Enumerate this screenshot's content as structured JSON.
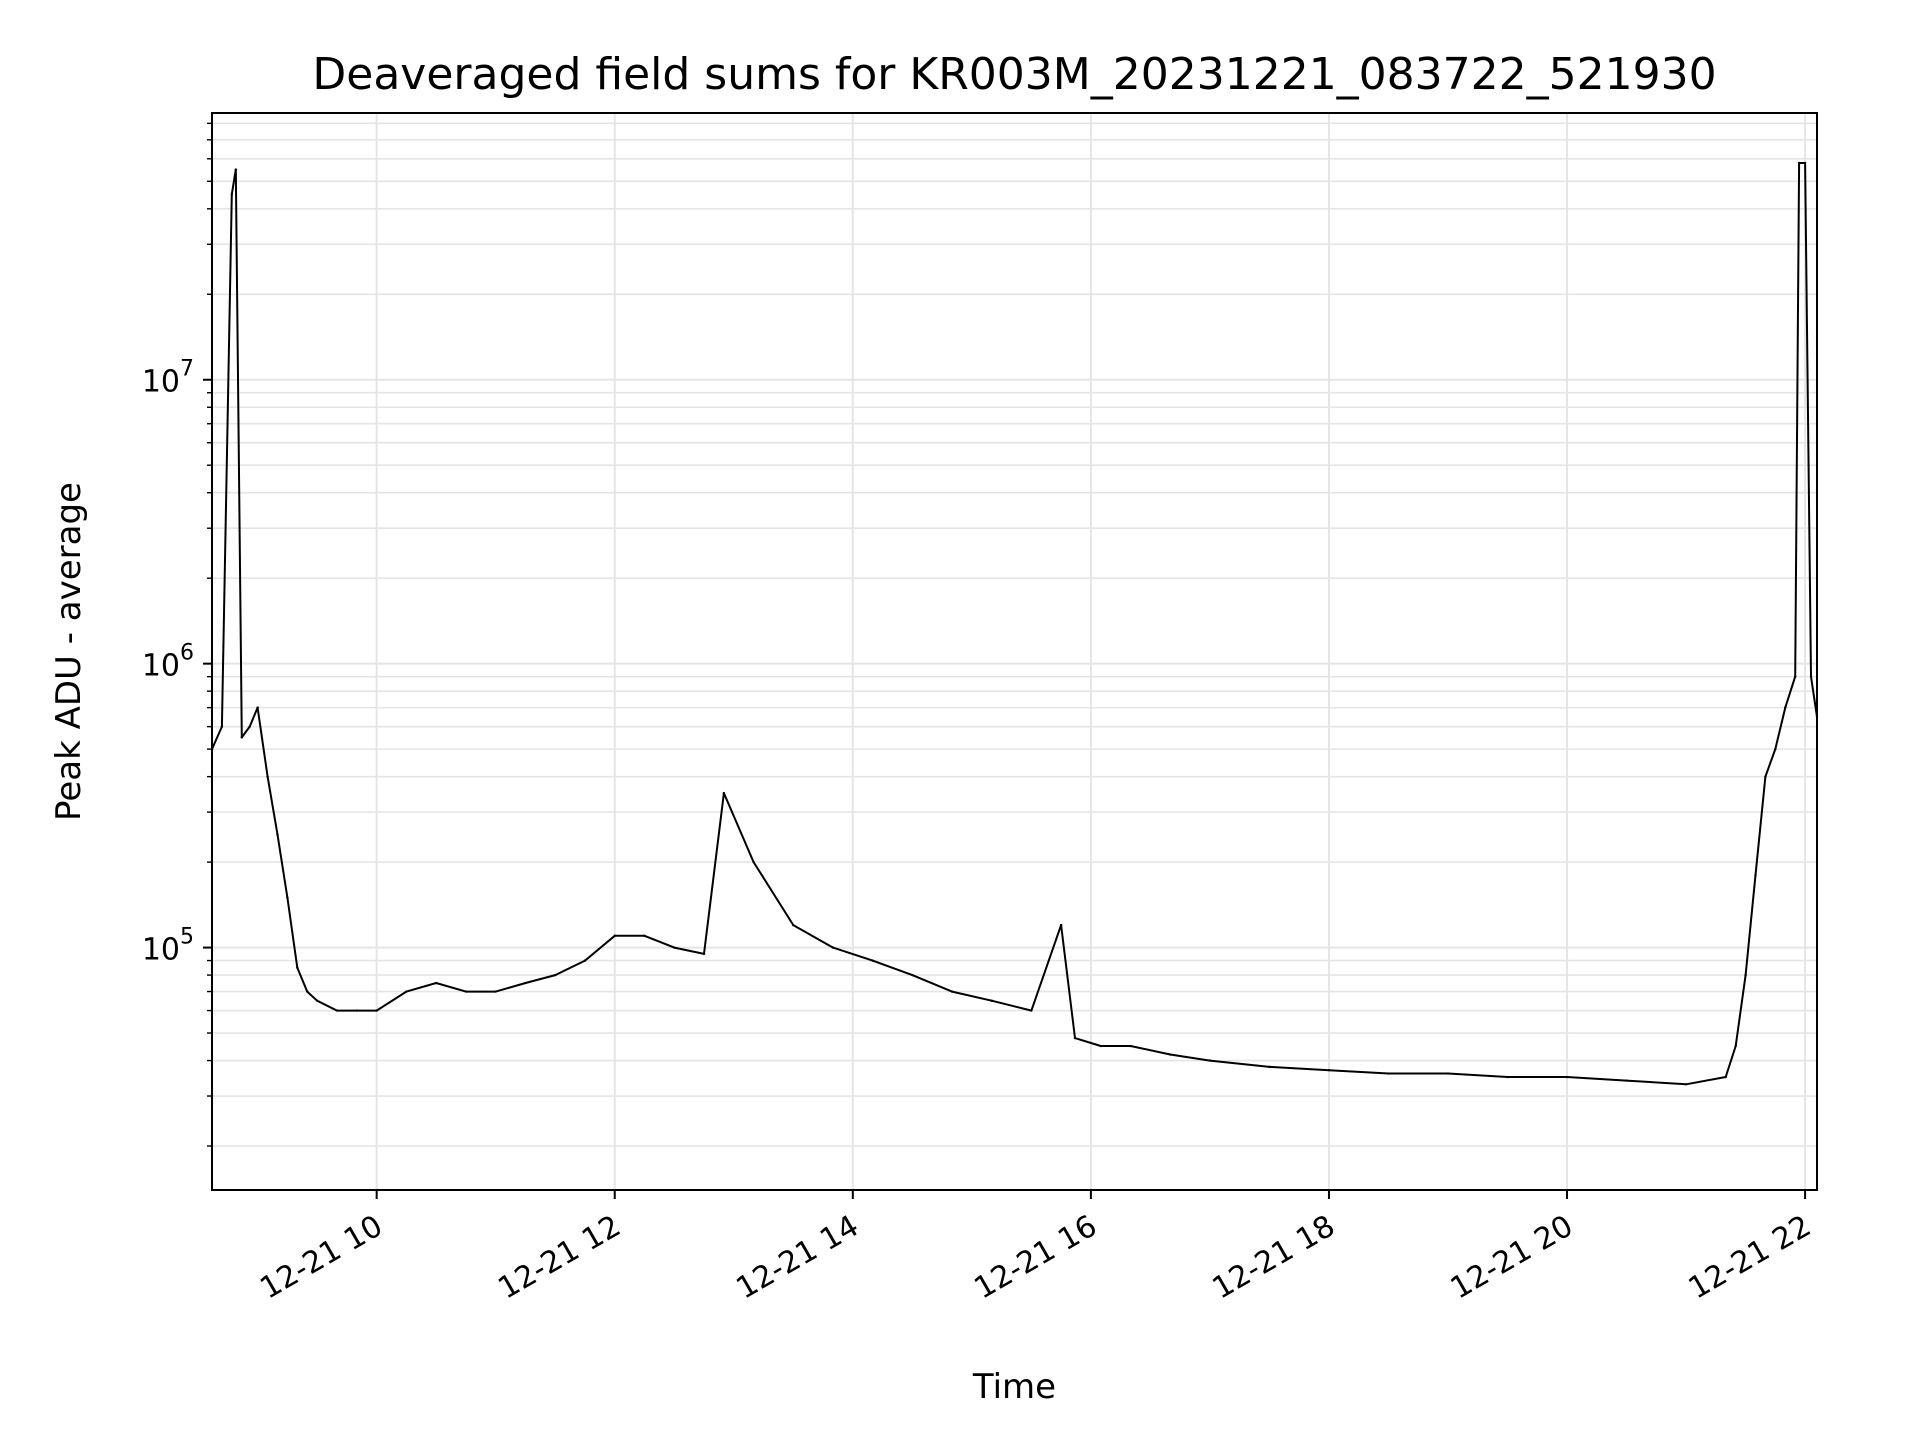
{
  "chart_data": {
    "type": "line",
    "title": "Deaveraged field sums for KR003M_20231221_083722_521930",
    "xlabel": "Time",
    "ylabel": "Peak ADU - average",
    "x_scale": "time",
    "y_scale": "log",
    "xlim": [
      "2023-12-21 08:37",
      "2023-12-21 22:06"
    ],
    "ylim": [
      14000,
      87000000
    ],
    "grid": true,
    "x_ticks": [
      "12-21 10",
      "12-21 12",
      "12-21 14",
      "12-21 16",
      "12-21 18",
      "12-21 20",
      "12-21 22"
    ],
    "y_ticks": [
      {
        "base": "10",
        "exp": "5",
        "value": 100000
      },
      {
        "base": "10",
        "exp": "6",
        "value": 1000000
      },
      {
        "base": "10",
        "exp": "7",
        "value": 10000000
      }
    ],
    "line_color": "#000000",
    "grid_color": "#e5e5e5",
    "series": [
      {
        "x": [
          "2023-12-21 08:37",
          "2023-12-21 08:42",
          "2023-12-21 08:47",
          "2023-12-21 08:49",
          "2023-12-21 08:52",
          "2023-12-21 08:56",
          "2023-12-21 09:00",
          "2023-12-21 09:05",
          "2023-12-21 09:10",
          "2023-12-21 09:15",
          "2023-12-21 09:20",
          "2023-12-21 09:25",
          "2023-12-21 09:30",
          "2023-12-21 09:40",
          "2023-12-21 09:50",
          "2023-12-21 10:00",
          "2023-12-21 10:15",
          "2023-12-21 10:30",
          "2023-12-21 10:45",
          "2023-12-21 11:00",
          "2023-12-21 11:15",
          "2023-12-21 11:30",
          "2023-12-21 11:45",
          "2023-12-21 12:00",
          "2023-12-21 12:15",
          "2023-12-21 12:30",
          "2023-12-21 12:45",
          "2023-12-21 12:55",
          "2023-12-21 13:10",
          "2023-12-21 13:30",
          "2023-12-21 13:50",
          "2023-12-21 14:10",
          "2023-12-21 14:30",
          "2023-12-21 14:50",
          "2023-12-21 15:10",
          "2023-12-21 15:30",
          "2023-12-21 15:45",
          "2023-12-21 15:52",
          "2023-12-21 16:05",
          "2023-12-21 16:20",
          "2023-12-21 16:40",
          "2023-12-21 17:00",
          "2023-12-21 17:30",
          "2023-12-21 18:00",
          "2023-12-21 18:30",
          "2023-12-21 19:00",
          "2023-12-21 19:30",
          "2023-12-21 20:00",
          "2023-12-21 20:30",
          "2023-12-21 21:00",
          "2023-12-21 21:20",
          "2023-12-21 21:25",
          "2023-12-21 21:30",
          "2023-12-21 21:35",
          "2023-12-21 21:40",
          "2023-12-21 21:45",
          "2023-12-21 21:50",
          "2023-12-21 21:55",
          "2023-12-21 21:57",
          "2023-12-21 22:00",
          "2023-12-21 22:03",
          "2023-12-21 22:06"
        ],
        "y": [
          500000,
          600000,
          45000000,
          55000000,
          550000,
          600000,
          700000,
          400000,
          250000,
          150000,
          85000,
          70000,
          65000,
          60000,
          60000,
          60000,
          70000,
          75000,
          70000,
          70000,
          75000,
          80000,
          90000,
          110000,
          110000,
          100000,
          95000,
          350000,
          200000,
          120000,
          100000,
          90000,
          80000,
          70000,
          65000,
          60000,
          120000,
          48000,
          45000,
          45000,
          42000,
          40000,
          38000,
          37000,
          36000,
          36000,
          35000,
          35000,
          34000,
          33000,
          35000,
          45000,
          80000,
          180000,
          400000,
          500000,
          700000,
          900000,
          58000000,
          58000000,
          900000,
          650000
        ]
      }
    ]
  }
}
